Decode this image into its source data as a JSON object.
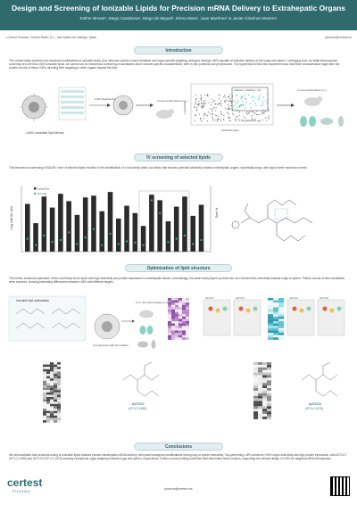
{
  "header": {
    "title": "Design and Screening of Ionizable Lipids for Precision mRNA Delivery to Extrahepatic Organs",
    "authors": "Esther Broset¹, Diego Casabona¹, Diego de Miguel¹, Elena Mata¹, Juan Martínez¹ & Javier Giménez-Warren¹"
  },
  "affiliation": "¹ Certest Pharma, Certest Biotec S.L., San Mateo de Gállego, Spain",
  "contact_email": "pharma@certest.es",
  "sections": {
    "introduction": {
      "title": "Introduction",
      "text": "The current study explores how structural modifications in ionizable lipids (ILs) influence protein corona formation and organ-specific targeting, aiming to develop LNPs capable of selective delivery to the lungs and spleen. Leveraging from our initial intramuscular screening of more than 1500 ionizable lipids, we carried out an intravenous screening of candidates which showed specific characteristics, both in vitro potential and performance. The hypothesis behind this experiment was that these characteristics might alter the protein corona of these LNPs, directing their targeting to other organs beyond the liver.",
      "library_label": ">1500 ionizable lipid library",
      "lnp_label": "LNP characterization",
      "invivo_label": "In vivo performance (i.m.)",
      "criterion_label": "Criterion 1: Total flux > 10⁸",
      "top_label": "Top performers",
      "xlabel": "Total Flux (p/s)",
      "ylabel": "Z-potential",
      "iv_label": "In vivo performance (i.v.)"
    },
    "iv_screening": {
      "title": "IV screening of selected lipids",
      "text": "This intravenous screening in BALB/C mice of selected lipids resulted in the identification of a sub-family within our library that showed potential selectivity towards extrahepatic organs, specifically lungs, with high protein expression levels.",
      "legend": [
        "Lung Flux",
        "% Lung"
      ],
      "ylabel": "Lung total flux (p/s)",
      "ylabel2": "Ratio %"
    },
    "optimization": {
      "title": "Optimization of lipid structure",
      "text": "The further structural exploration of this sub-library led to lipids with high selectivity and protein expression in extrahepatic tissues. Interestingly, the polar head played a pivotal role, as it directed this selectivity towards lungs or spleen. Protein corona of best candidates were explored, showing interesting differences between LNPs with different targets.",
      "lipid_opt_label": "Ionizable lipid optimization",
      "formulation_label": "4-component LNP formulation",
      "iv_label": "IV in vivo performance (i.v.)",
      "candidates": [
        {
          "name": "A27CC7",
          "code": "(CP-LC-1495)"
        },
        {
          "name": "A27CC3",
          "code": "(CP-LC-1476)"
        }
      ],
      "panel_tags": [
        "A27CC7",
        "A27CC3",
        "A27CC4",
        "A27CC8"
      ]
    },
    "conclusions": {
      "title": "Conclusions",
      "text": "We demonstrated that structural tuning of ionizable lipids enables precise extrahepatic mRNA delivery, with polar headgroup modifications driving lung or spleen selectivity. Top-performing LNPs achieved >90% organ selectivity and high protein expression, with A27CC7 (CP-LC-1495) and A27CC3 (CP-LC-1476) showing exceptional organ targeting towards lungs and spleen, respectively. Protein corona profiling confirmed lipid-dependent tissue tropism, supporting the rational design of LNPs for targeted mRNA therapeutics."
    }
  },
  "footer": {
    "logo": "certest",
    "logo_sub": "PHARMA",
    "email": "pharma@certest.es"
  },
  "colors": {
    "primary": "#2f6b6e",
    "accent": "#36b3a0",
    "section_bg": "#e3eef1"
  },
  "chart_data": {
    "type": "bar",
    "title": "",
    "ylabel": "Lung total flux (p/s)",
    "values": [
      5.2,
      3.1,
      6.0,
      4.8,
      6.3,
      5.5,
      4.0,
      5.9,
      6.1,
      4.4,
      6.5,
      3.6,
      5.0,
      4.2,
      2.8,
      6.2,
      5.6,
      3.3,
      4.9,
      6.0,
      3.9,
      5.1
    ],
    "values_pct": [
      20,
      10,
      25,
      15,
      18,
      30,
      12,
      22,
      35,
      10,
      28,
      12,
      16,
      14,
      10,
      80,
      60,
      15,
      20,
      25,
      12,
      18
    ]
  }
}
